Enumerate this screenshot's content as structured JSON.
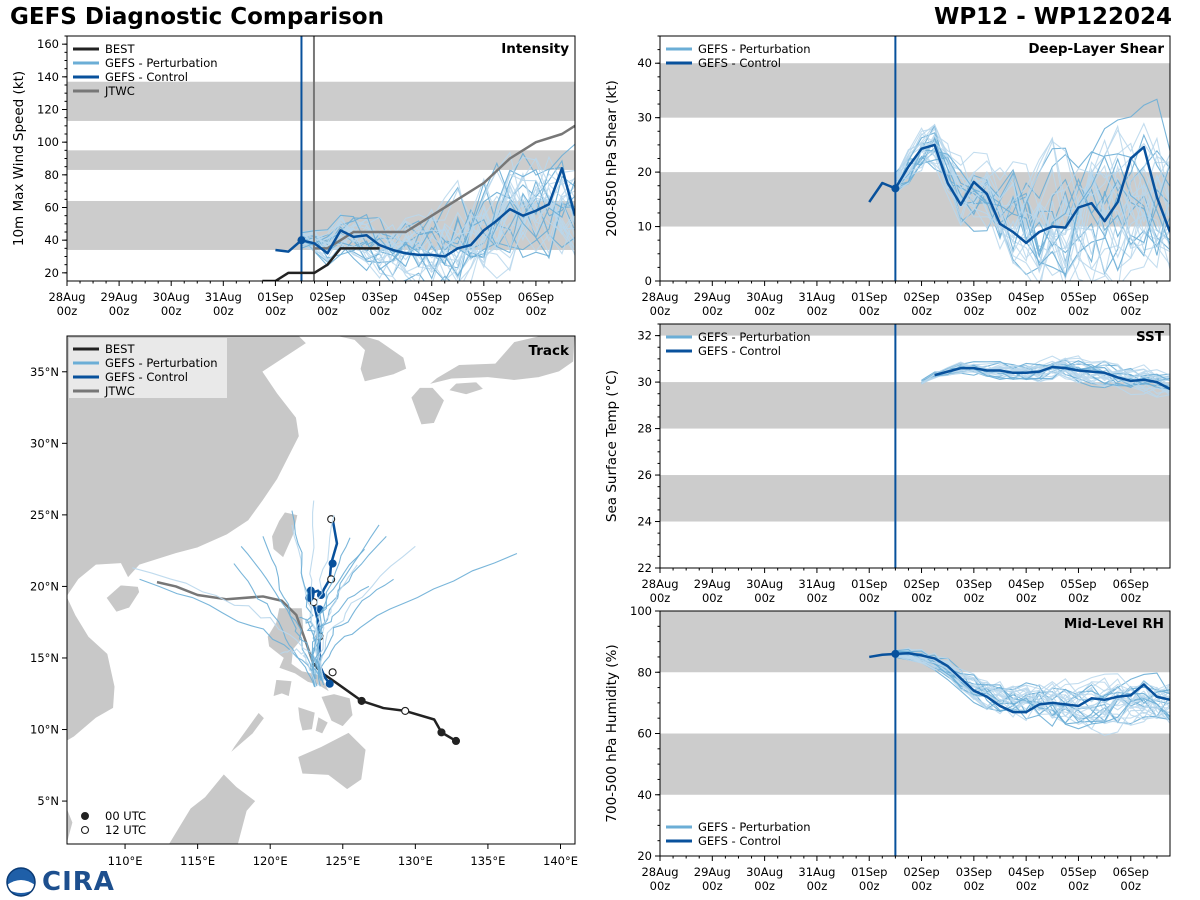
{
  "header": {
    "left_title": "GEFS Diagnostic Comparison",
    "right_title": "WP12 - WP122024"
  },
  "colors": {
    "best": "#222222",
    "perturbation": "#6baed6",
    "control": "#08519c",
    "jtwc": "#777777",
    "band": "#cccccc",
    "land": "#c8c8c8"
  },
  "time_axis": {
    "labels": [
      "28Aug\n00z",
      "29Aug\n00z",
      "30Aug\n00z",
      "31Aug\n00z",
      "01Sep\n00z",
      "02Sep\n00z",
      "03Sep\n00z",
      "04Sep\n00z",
      "05Sep\n00z",
      "06Sep\n00z"
    ],
    "range_days": [
      0,
      9.75
    ],
    "init_day": 4.5
  },
  "legend_labels": {
    "best": "BEST",
    "perturbation": "GEFS - Perturbation",
    "control": "GEFS - Control",
    "jtwc": "JTWC"
  },
  "chart_data": [
    {
      "id": "intensity",
      "type": "line",
      "title": "Intensity",
      "ylabel": "10m Max Wind Speed (kt)",
      "ylim": [
        15,
        165
      ],
      "yticks": [
        20,
        40,
        60,
        80,
        100,
        120,
        140,
        160
      ],
      "bands": [
        [
          34,
          64
        ],
        [
          83,
          95
        ],
        [
          113,
          137
        ]
      ],
      "vlines": [
        {
          "day": 4.5,
          "kind": "control"
        },
        {
          "day": 4.74,
          "kind": "jtwc"
        }
      ],
      "legend": [
        "best",
        "perturbation",
        "control",
        "jtwc"
      ],
      "best": {
        "x": [
          3.75,
          4.0,
          4.25,
          4.5,
          4.75,
          5.0,
          5.25,
          5.5,
          5.75,
          6.0
        ],
        "y": [
          15,
          15,
          20,
          20,
          20,
          25,
          35,
          35,
          35,
          35
        ]
      },
      "jtwc": {
        "x": [
          4.75,
          5.0,
          5.25,
          5.5,
          5.75,
          6.0,
          6.25,
          6.5,
          6.75,
          7.0,
          7.5,
          8.0,
          8.5,
          9.0,
          9.5,
          9.75
        ],
        "y": [
          35,
          35,
          40,
          45,
          45,
          45,
          45,
          45,
          50,
          55,
          65,
          75,
          90,
          100,
          105,
          110
        ]
      },
      "control": {
        "x": [
          4.0,
          4.25,
          4.5,
          4.75,
          5.0,
          5.25,
          5.5,
          5.75,
          6.0,
          6.25,
          6.5,
          6.75,
          7.0,
          7.25,
          7.5,
          7.75,
          8.0,
          8.25,
          8.5,
          8.75,
          9.0,
          9.25,
          9.5,
          9.75
        ],
        "y": [
          34,
          33,
          40,
          38,
          32,
          46,
          42,
          43,
          37,
          34,
          32,
          31,
          31,
          30,
          35,
          37,
          46,
          52,
          59,
          55,
          58,
          62,
          84,
          55
        ]
      },
      "pert_base": {
        "x": [
          4.5,
          4.75,
          5.0,
          5.25,
          5.5,
          5.75,
          6.0,
          6.25,
          6.5,
          6.75,
          7.0,
          7.25,
          7.5,
          7.75,
          8.0,
          8.25,
          8.5,
          8.75,
          9.0,
          9.25,
          9.5,
          9.75
        ],
        "y": [
          40,
          38,
          35,
          42,
          42,
          40,
          36,
          34,
          33,
          33,
          34,
          36,
          40,
          44,
          48,
          52,
          56,
          58,
          60,
          62,
          63,
          60
        ]
      },
      "pert_spread": 20
    },
    {
      "id": "shear",
      "type": "line",
      "title": "Deep-Layer Shear",
      "ylabel": "200-850 hPa Shear (kt)",
      "ylim": [
        0,
        45
      ],
      "yticks": [
        0,
        10,
        20,
        30,
        40
      ],
      "bands": [
        [
          10,
          20
        ],
        [
          30,
          40
        ]
      ],
      "vlines": [
        {
          "day": 4.5,
          "kind": "control"
        }
      ],
      "legend": [
        "perturbation",
        "control"
      ],
      "control": {
        "x": [
          4.0,
          4.25,
          4.5,
          4.75,
          5.0,
          5.25,
          5.5,
          5.75,
          6.0,
          6.25,
          6.5,
          6.75,
          7.0,
          7.25,
          7.5,
          7.75,
          8.0,
          8.25,
          8.5,
          8.75,
          9.0,
          9.25,
          9.5,
          9.75
        ],
        "y": [
          14.5,
          18,
          17,
          21,
          24.3,
          25,
          18,
          14,
          18.2,
          16,
          10.5,
          9,
          7,
          9,
          10,
          9.8,
          13.5,
          14.3,
          11,
          14.5,
          22.5,
          24.6,
          15.4,
          9
        ]
      },
      "pert_base": {
        "x": [
          4.5,
          4.75,
          5.0,
          5.25,
          5.5,
          5.75,
          6.0,
          6.25,
          6.5,
          6.75,
          7.0,
          7.25,
          7.5,
          7.75,
          8.0,
          8.25,
          8.5,
          8.75,
          9.0,
          9.25,
          9.5,
          9.75
        ],
        "y": [
          18,
          21,
          24,
          25,
          20,
          16,
          17,
          15,
          12,
          11,
          10,
          10,
          11,
          10,
          11,
          12,
          12,
          13,
          14,
          15,
          15,
          14
        ]
      },
      "pert_spread": 8
    },
    {
      "id": "sst",
      "type": "line",
      "title": "SST",
      "ylabel": "Sea Surface Temp (°C)",
      "ylim": [
        22,
        32.5
      ],
      "yticks": [
        22,
        24,
        26,
        28,
        30,
        32
      ],
      "bands": [
        [
          24,
          26
        ],
        [
          28,
          30
        ],
        [
          32,
          32.5
        ]
      ],
      "vlines": [
        {
          "day": 4.5,
          "kind": "control"
        }
      ],
      "legend": [
        "perturbation",
        "control"
      ],
      "control": {
        "x": [
          5.25,
          5.5,
          5.75,
          6.0,
          6.25,
          6.5,
          6.75,
          7.0,
          7.25,
          7.5,
          7.75,
          8.0,
          8.25,
          8.5,
          8.75,
          9.0,
          9.25,
          9.5,
          9.75
        ],
        "y": [
          30.3,
          30.45,
          30.6,
          30.6,
          30.5,
          30.5,
          30.4,
          30.4,
          30.45,
          30.65,
          30.6,
          30.5,
          30.45,
          30.4,
          30.2,
          30.05,
          30.1,
          30.0,
          29.7
        ]
      },
      "pert_base": {
        "x": [
          5.0,
          5.25,
          5.5,
          5.75,
          6.0,
          6.25,
          6.5,
          6.75,
          7.0,
          7.25,
          7.5,
          7.75,
          8.0,
          8.25,
          8.5,
          8.75,
          9.0,
          9.25,
          9.5,
          9.75
        ],
        "y": [
          30.0,
          30.3,
          30.45,
          30.6,
          30.6,
          30.5,
          30.5,
          30.4,
          30.4,
          30.45,
          30.6,
          30.6,
          30.5,
          30.45,
          30.4,
          30.25,
          30.1,
          30.1,
          30.0,
          29.8
        ]
      },
      "pert_spread": 0.35
    },
    {
      "id": "rh",
      "type": "line",
      "title": "Mid-Level RH",
      "ylabel": "700-500 hPa Humidity (%)",
      "ylim": [
        20,
        100
      ],
      "yticks": [
        20,
        40,
        60,
        80,
        100
      ],
      "bands": [
        [
          40,
          60
        ],
        [
          80,
          100
        ]
      ],
      "vlines": [
        {
          "day": 4.5,
          "kind": "control"
        }
      ],
      "legend": [
        "perturbation",
        "control"
      ],
      "control": {
        "x": [
          4.0,
          4.25,
          4.5,
          4.75,
          5.0,
          5.25,
          5.5,
          5.75,
          6.0,
          6.25,
          6.5,
          6.75,
          7.0,
          7.25,
          7.5,
          7.75,
          8.0,
          8.25,
          8.5,
          8.75,
          9.0,
          9.25,
          9.5,
          9.75
        ],
        "y": [
          85,
          85.7,
          86,
          86.2,
          85.5,
          84.5,
          82,
          78,
          74,
          72,
          69,
          67,
          67,
          69.5,
          70,
          69.5,
          69,
          71.5,
          71,
          72,
          72.5,
          76,
          72,
          71
        ]
      },
      "pert_base": {
        "x": [
          4.5,
          4.75,
          5.0,
          5.25,
          5.5,
          5.75,
          6.0,
          6.25,
          6.5,
          6.75,
          7.0,
          7.25,
          7.5,
          7.75,
          8.0,
          8.25,
          8.5,
          8.75,
          9.0,
          9.25,
          9.5,
          9.75
        ],
        "y": [
          86,
          86,
          85,
          84,
          82,
          78,
          75,
          73,
          72,
          71,
          70,
          70,
          70,
          69,
          69,
          69,
          69,
          69,
          69,
          70,
          70,
          69
        ]
      },
      "pert_spread": 5
    },
    {
      "id": "track",
      "type": "map",
      "title": "Track",
      "xticks": [
        "110°E",
        "115°E",
        "120°E",
        "125°E",
        "130°E",
        "135°E",
        "140°E"
      ],
      "xtick_values": [
        110,
        115,
        120,
        125,
        130,
        135,
        140
      ],
      "yticks": [
        "5°N",
        "10°N",
        "15°N",
        "20°N",
        "25°N",
        "30°N",
        "35°N"
      ],
      "ytick_values": [
        5,
        10,
        15,
        20,
        25,
        30,
        35
      ],
      "lon_range": [
        106,
        141
      ],
      "lat_range": [
        2,
        37.5
      ],
      "legend": [
        "best",
        "perturbation",
        "control",
        "jtwc"
      ],
      "marker_legend": [
        "00 UTC",
        "12 UTC"
      ],
      "best": {
        "lon": [
          132.8,
          131.8,
          131.3,
          129.3,
          127.8,
          126.3,
          124.5,
          123.5,
          123.0
        ],
        "lat": [
          9.2,
          9.8,
          10.7,
          11.3,
          11.5,
          12.0,
          13.3,
          14.0,
          14.6
        ]
      },
      "best_markers": [
        {
          "lon": 132.8,
          "lat": 9.2,
          "utc": "00"
        },
        {
          "lon": 131.8,
          "lat": 9.8,
          "utc": "00"
        },
        {
          "lon": 129.3,
          "lat": 11.3,
          "utc": "12"
        },
        {
          "lon": 126.3,
          "lat": 12.0,
          "utc": "00"
        },
        {
          "lon": 124.3,
          "lat": 14.0,
          "utc": "12"
        }
      ],
      "jtwc": {
        "lon": [
          123.0,
          122.5,
          121.8,
          120.8,
          119.5,
          117.0,
          115.0,
          113.5,
          112.2
        ],
        "lat": [
          14.5,
          16.0,
          18.0,
          19.0,
          19.3,
          19.1,
          19.4,
          20.0,
          20.3
        ]
      },
      "control": {
        "lon": [
          124.1,
          123.8,
          123.4,
          123.4,
          123.3,
          123.1,
          122.9,
          123.0,
          123.3,
          123.5,
          123.7,
          124.1,
          124.2,
          124.6,
          124.3
        ],
        "lat": [
          13.2,
          13.6,
          14.5,
          16.0,
          17.5,
          18.4,
          19.0,
          19.6,
          19.7,
          19.3,
          19.8,
          20.5,
          21.6,
          23.0,
          24.7
        ]
      },
      "control_markers": [
        {
          "lon": 124.1,
          "lat": 13.2,
          "utc": "00"
        },
        {
          "lon": 123.4,
          "lat": 16.5,
          "utc": "12"
        },
        {
          "lon": 123.4,
          "lat": 18.4,
          "utc": "00"
        },
        {
          "lon": 123.0,
          "lat": 18.9,
          "utc": "12"
        },
        {
          "lon": 122.7,
          "lat": 19.2,
          "utc": "00"
        },
        {
          "lon": 122.8,
          "lat": 19.7,
          "utc": "00"
        },
        {
          "lon": 123.5,
          "lat": 19.4,
          "utc": "00"
        },
        {
          "lon": 124.2,
          "lat": 20.5,
          "utc": "12"
        },
        {
          "lon": 124.3,
          "lat": 21.6,
          "utc": "00"
        },
        {
          "lon": 124.2,
          "lat": 24.7,
          "utc": "12"
        }
      ],
      "perturbation_ends": [
        [
          121.5,
          24.3
        ],
        [
          118.0,
          22.8
        ],
        [
          117.5,
          21.6
        ],
        [
          110.5,
          21.3
        ],
        [
          111.0,
          20.5
        ],
        [
          121.5,
          25.3
        ],
        [
          124.4,
          25.0
        ],
        [
          127.5,
          24.3
        ],
        [
          128.0,
          23.5
        ],
        [
          130.0,
          22.8
        ],
        [
          137.0,
          22.3
        ],
        [
          125.5,
          23.4
        ],
        [
          126.0,
          21.5
        ],
        [
          128.5,
          20.5
        ],
        [
          122.0,
          17.8
        ],
        [
          120.7,
          15.3
        ],
        [
          126.5,
          22.6
        ],
        [
          119.5,
          23.5
        ],
        [
          123.0,
          26.0
        ],
        [
          126.8,
          20.0
        ]
      ]
    }
  ],
  "footer": {
    "logo_text": "CIRA"
  }
}
